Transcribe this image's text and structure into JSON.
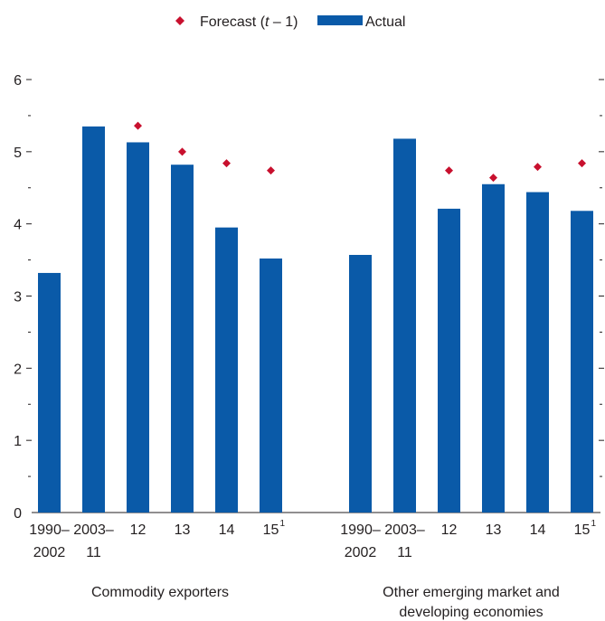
{
  "chart_data": {
    "type": "bar",
    "ylim": [
      0,
      6
    ],
    "y_ticks": [
      "0",
      "1",
      "2",
      "3",
      "4",
      "5",
      "6"
    ],
    "grid": false,
    "legend": {
      "placement": "top-center",
      "forecast_label": "Forecast (t – 1)",
      "forecast_parts": [
        "Forecast (",
        "t",
        " – 1)"
      ],
      "actual_label": "Actual"
    },
    "colors": {
      "actual": "#0a5aa8",
      "forecast": "#c8102e"
    },
    "groups": [
      {
        "name": "Commodity exporters",
        "name_lines": [
          "Commodity exporters"
        ],
        "categories": [
          {
            "lines": [
              "1990–",
              "2002"
            ],
            "sup": ""
          },
          {
            "lines": [
              "2003–",
              "11"
            ],
            "sup": ""
          },
          {
            "lines": [
              "12"
            ],
            "sup": ""
          },
          {
            "lines": [
              "13"
            ],
            "sup": ""
          },
          {
            "lines": [
              "14"
            ],
            "sup": ""
          },
          {
            "lines": [
              "15"
            ],
            "sup": "1"
          }
        ],
        "actual": [
          3.32,
          5.35,
          5.13,
          4.82,
          3.95,
          3.52
        ],
        "forecast": [
          null,
          null,
          5.36,
          5.0,
          4.84,
          4.74
        ]
      },
      {
        "name": "Other emerging market and developing economies",
        "name_lines": [
          "Other emerging market and",
          "developing economies"
        ],
        "categories": [
          {
            "lines": [
              "1990–",
              "2002"
            ],
            "sup": ""
          },
          {
            "lines": [
              "2003–",
              "11"
            ],
            "sup": ""
          },
          {
            "lines": [
              "12"
            ],
            "sup": ""
          },
          {
            "lines": [
              "13"
            ],
            "sup": ""
          },
          {
            "lines": [
              "14"
            ],
            "sup": ""
          },
          {
            "lines": [
              "15"
            ],
            "sup": "1"
          }
        ],
        "actual": [
          3.57,
          5.18,
          4.21,
          4.55,
          4.44,
          4.18
        ],
        "forecast": [
          null,
          null,
          4.74,
          4.64,
          4.79,
          4.84
        ]
      }
    ]
  }
}
